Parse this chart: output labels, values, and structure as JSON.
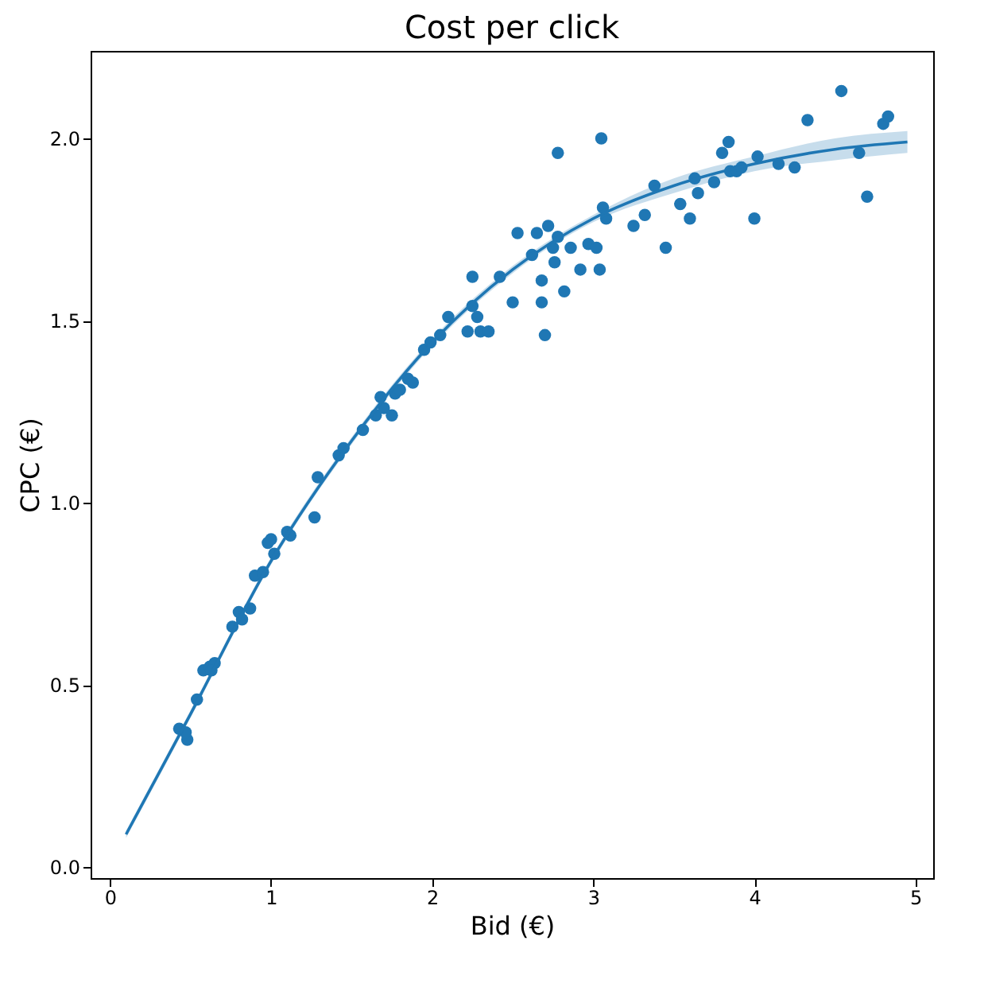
{
  "chart_data": {
    "type": "scatter",
    "title": "Cost per click",
    "xlabel": "Bid (€)",
    "ylabel": "CPC (€)",
    "xlim": [
      -0.12,
      5.11
    ],
    "ylim": [
      -0.03,
      2.24
    ],
    "xticks": [
      0,
      1,
      2,
      3,
      4,
      5
    ],
    "yticks": [
      {
        "value": 0,
        "label": "0.0"
      },
      0.5,
      {
        "value": 1,
        "label": "1.0"
      },
      1.5,
      {
        "value": 2,
        "label": "2.0"
      }
    ],
    "grid": false,
    "series": [
      {
        "marker": "circle",
        "color": "#1f77b4",
        "x": [
          0.43,
          0.48,
          0.47,
          0.54,
          0.58,
          0.62,
          0.65,
          0.63,
          0.76,
          0.8,
          0.82,
          0.87,
          0.9,
          0.95,
          0.98,
          1.02,
          1.0,
          1.1,
          1.12,
          1.27,
          1.29,
          1.42,
          1.45,
          1.57,
          1.65,
          1.68,
          1.7,
          1.75,
          1.77,
          1.8,
          1.85,
          1.88,
          1.95,
          1.99,
          2.05,
          2.1,
          2.22,
          2.25,
          2.25,
          2.28,
          2.3,
          2.35,
          2.42,
          2.5,
          2.53,
          2.62,
          2.65,
          2.68,
          2.68,
          2.7,
          2.72,
          2.75,
          2.76,
          2.78,
          2.78,
          2.82,
          2.86,
          2.92,
          2.97,
          3.02,
          3.04,
          3.05,
          3.06,
          3.08,
          3.25,
          3.32,
          3.38,
          3.45,
          3.54,
          3.6,
          3.63,
          3.65,
          3.75,
          3.8,
          3.84,
          3.85,
          3.89,
          3.92,
          4.0,
          4.02,
          4.15,
          4.25,
          4.33,
          4.54,
          4.65,
          4.7,
          4.8,
          4.83
        ],
        "values": [
          0.38,
          0.35,
          0.37,
          0.46,
          0.54,
          0.55,
          0.56,
          0.54,
          0.66,
          0.7,
          0.68,
          0.71,
          0.8,
          0.81,
          0.89,
          0.86,
          0.9,
          0.92,
          0.91,
          0.96,
          1.07,
          1.13,
          1.15,
          1.2,
          1.24,
          1.29,
          1.26,
          1.24,
          1.3,
          1.31,
          1.34,
          1.33,
          1.42,
          1.44,
          1.46,
          1.51,
          1.47,
          1.54,
          1.62,
          1.51,
          1.47,
          1.47,
          1.62,
          1.55,
          1.74,
          1.68,
          1.74,
          1.61,
          1.55,
          1.46,
          1.76,
          1.7,
          1.66,
          1.96,
          1.73,
          1.58,
          1.7,
          1.64,
          1.71,
          1.7,
          1.64,
          2.0,
          1.81,
          1.78,
          1.76,
          1.79,
          1.87,
          1.7,
          1.82,
          1.78,
          1.89,
          1.85,
          1.88,
          1.96,
          1.99,
          1.91,
          1.91,
          1.92,
          1.78,
          1.95,
          1.93,
          1.92,
          2.05,
          2.13,
          1.96,
          1.84,
          2.04,
          2.06
        ]
      },
      {
        "type": "line",
        "line_style": "solid",
        "color": "#1f77b4",
        "x": [
          0.1,
          0.5,
          1.0,
          1.5,
          2.0,
          2.5,
          3.0,
          3.5,
          4.0,
          4.5,
          4.95
        ],
        "values": [
          0.09,
          0.42,
          0.84,
          1.17,
          1.44,
          1.64,
          1.78,
          1.87,
          1.93,
          1.97,
          1.99
        ],
        "lower": [
          0.08,
          0.41,
          0.83,
          1.16,
          1.43,
          1.63,
          1.77,
          1.85,
          1.91,
          1.94,
          1.96
        ],
        "upper": [
          0.1,
          0.43,
          0.85,
          1.18,
          1.45,
          1.65,
          1.79,
          1.89,
          1.95,
          2.0,
          2.02
        ]
      }
    ]
  }
}
